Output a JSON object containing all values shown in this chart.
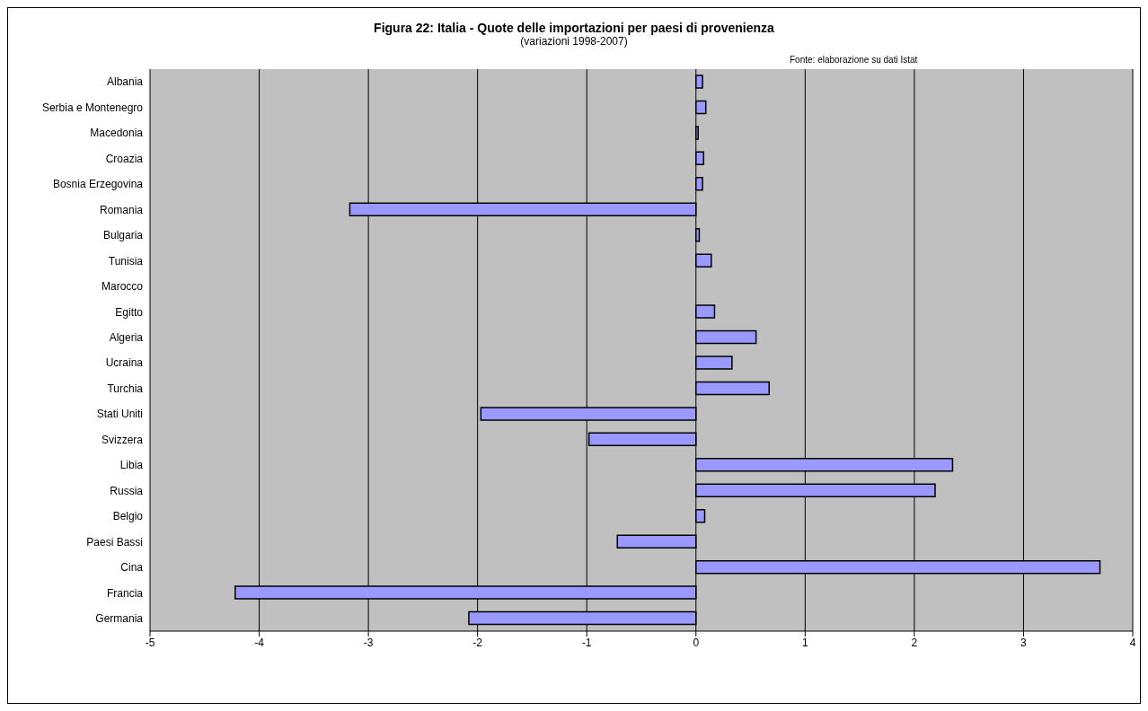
{
  "chart_data": {
    "type": "bar",
    "orientation": "horizontal",
    "title": "Figura 22: Italia - Quote delle importazioni per paesi di provenienza",
    "subtitle": "(variazioni 1998-2007)",
    "annotations": [
      "Fonte: elaborazione su dati Istat"
    ],
    "categories": [
      "Albania",
      "Serbia e Montenegro",
      "Macedonia",
      "Croazia",
      "Bosnia Erzegovina",
      "Romania",
      "Bulgaria",
      "Tunisia",
      "Marocco",
      "Egitto",
      "Algeria",
      "Ucraina",
      "Turchia",
      "Stati Uniti",
      "Svizzera",
      "Libia",
      "Russia",
      "Belgio",
      "Paesi Bassi",
      "Cina",
      "Francia",
      "Germania"
    ],
    "values": [
      0.06,
      0.09,
      0.02,
      0.07,
      0.06,
      -3.17,
      0.03,
      0.14,
      0,
      0.17,
      0.55,
      0.33,
      0.67,
      -1.97,
      -0.98,
      2.35,
      2.19,
      0.08,
      -0.72,
      3.7,
      -4.22,
      -2.08
    ],
    "color": "#9999ff",
    "xlim": [
      -5,
      4
    ],
    "xticks": [
      -5,
      -4,
      -3,
      -2,
      -1,
      0,
      1,
      2,
      3,
      4
    ],
    "grid": "x",
    "legend": false
  }
}
